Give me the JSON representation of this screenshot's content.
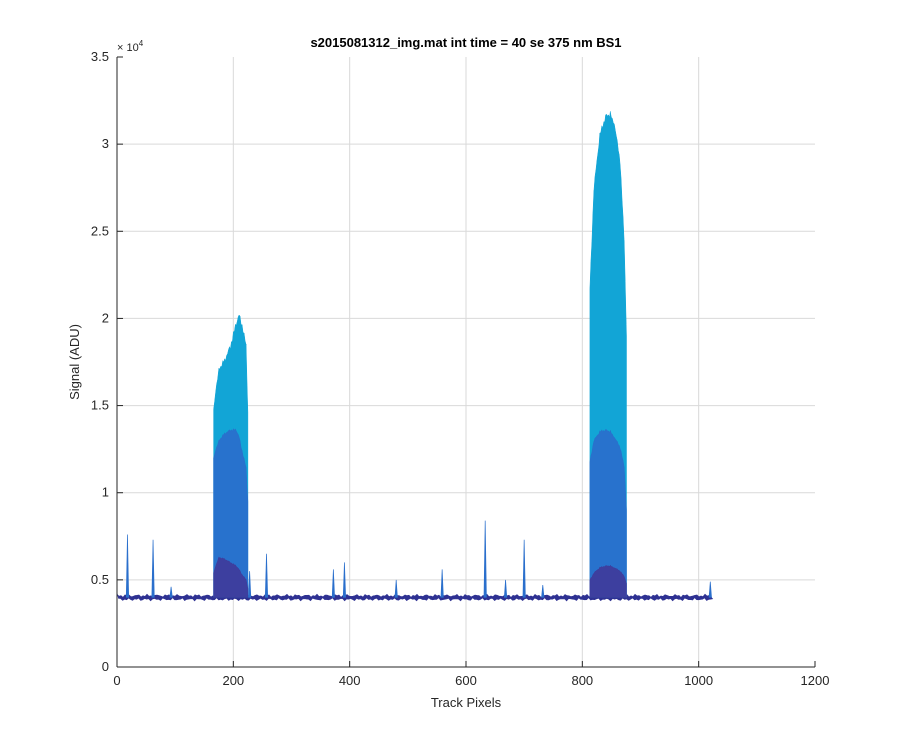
{
  "chart_data": {
    "type": "area",
    "title": "s2015081312_img.mat int time = 40 se  375 nm BS1",
    "xlabel": "Track Pixels",
    "ylabel": "Signal (ADU)",
    "xlim": [
      0,
      1200
    ],
    "ylim": [
      0,
      35000
    ],
    "x_ticks": [
      0,
      200,
      400,
      600,
      800,
      1000,
      1200
    ],
    "x_tick_labels": [
      "0",
      "200",
      "400",
      "600",
      "800",
      "1000",
      "1200"
    ],
    "y_ticks": [
      0,
      5000,
      10000,
      15000,
      20000,
      25000,
      30000,
      35000
    ],
    "y_tick_labels": [
      "0",
      "0.5",
      "1",
      "1.5",
      "2",
      "2.5",
      "3",
      "3.5"
    ],
    "y_exponent_label": "× 10",
    "y_exponent_power": "4",
    "grid": true,
    "baseline": 4000,
    "x_end": 1024,
    "colors": {
      "background": "#ffffff",
      "grid": "#d9d9d9",
      "axis": "#262626",
      "baseline": "#2e3192",
      "layer_light": "#12a5d6",
      "layer_mid": "#2a6fcc",
      "layer_dark": "#3b4bc8",
      "layer_deep": "#3f3a9a"
    },
    "peaks": [
      {
        "x": [
          166,
          175,
          185,
          195,
          205,
          210,
          215,
          222,
          225
        ],
        "max": [
          14800,
          17100,
          17600,
          18400,
          19700,
          20200,
          19600,
          18400,
          14600
        ],
        "mid": [
          12000,
          13000,
          13400,
          13600,
          13600,
          13200,
          12400,
          11400,
          9500
        ],
        "low": [
          5400,
          6300,
          6200,
          6000,
          5800,
          5600,
          5300,
          5000,
          4500
        ]
      },
      {
        "x": [
          813,
          820,
          830,
          840,
          848,
          855,
          865,
          872,
          876
        ],
        "max": [
          21800,
          27500,
          30500,
          31600,
          31700,
          31200,
          29000,
          24500,
          19000
        ],
        "mid": [
          11800,
          13000,
          13500,
          13600,
          13500,
          13200,
          12600,
          11500,
          9000
        ],
        "low": [
          5000,
          5400,
          5700,
          5800,
          5800,
          5700,
          5500,
          5200,
          4800
        ]
      }
    ],
    "spikes": [
      {
        "x": 18,
        "y": 7600
      },
      {
        "x": 62,
        "y": 7300
      },
      {
        "x": 93,
        "y": 4600
      },
      {
        "x": 228,
        "y": 5500
      },
      {
        "x": 257,
        "y": 6500
      },
      {
        "x": 372,
        "y": 5600
      },
      {
        "x": 391,
        "y": 6000
      },
      {
        "x": 480,
        "y": 5000
      },
      {
        "x": 559,
        "y": 5600
      },
      {
        "x": 633,
        "y": 8400
      },
      {
        "x": 668,
        "y": 5000
      },
      {
        "x": 700,
        "y": 7300
      },
      {
        "x": 732,
        "y": 4700
      },
      {
        "x": 1020,
        "y": 4900
      }
    ]
  }
}
